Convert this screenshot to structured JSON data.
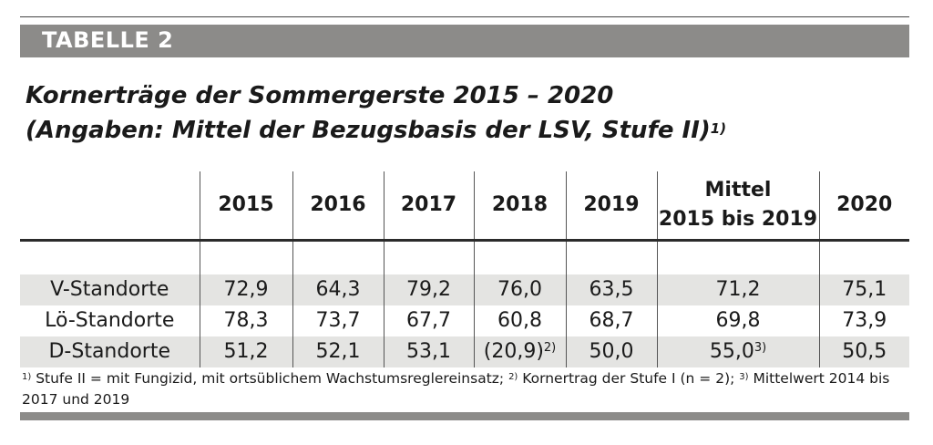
{
  "label": "TABELLE 2",
  "title": {
    "line1": "Kornerträge der Sommergerste 2015 – 2020",
    "line2": "(Angaben: Mittel der Bezugsbasis der LSV, Stufe II)",
    "line2_note": "1)"
  },
  "table": {
    "headers": [
      "",
      "2015",
      "2016",
      "2017",
      "2018",
      "2019",
      "Mittel",
      "2020"
    ],
    "mittel_line2": "2015 bis 2019",
    "rows": [
      {
        "label": "V-Standorte",
        "cells": [
          {
            "v": "72,9"
          },
          {
            "v": "64,3"
          },
          {
            "v": "79,2"
          },
          {
            "v": "76,0"
          },
          {
            "v": "63,5"
          },
          {
            "v": "71,2"
          },
          {
            "v": "75,1"
          }
        ]
      },
      {
        "label": "Lö-Standorte",
        "cells": [
          {
            "v": "78,3"
          },
          {
            "v": "73,7"
          },
          {
            "v": "67,7"
          },
          {
            "v": "60,8"
          },
          {
            "v": "68,7"
          },
          {
            "v": "69,8"
          },
          {
            "v": "73,9"
          }
        ]
      },
      {
        "label": "D-Standorte",
        "cells": [
          {
            "v": "51,2"
          },
          {
            "v": "52,1"
          },
          {
            "v": "53,1"
          },
          {
            "v": "(20,9)",
            "note": "2)"
          },
          {
            "v": "50,0"
          },
          {
            "v": "55,0",
            "note": "3)"
          },
          {
            "v": "50,5"
          }
        ]
      }
    ]
  },
  "footnotes": {
    "n1": "1)",
    "t1": " Stufe II = mit Fungizid, mit ortsüblichem Wachstumsreglereinsatz; ",
    "n2": "2)",
    "t2": " Kornertrag der Stufe I (n = 2); ",
    "n3": "3)",
    "t3": " Mittelwert 2014 bis 2017 und 2019"
  }
}
